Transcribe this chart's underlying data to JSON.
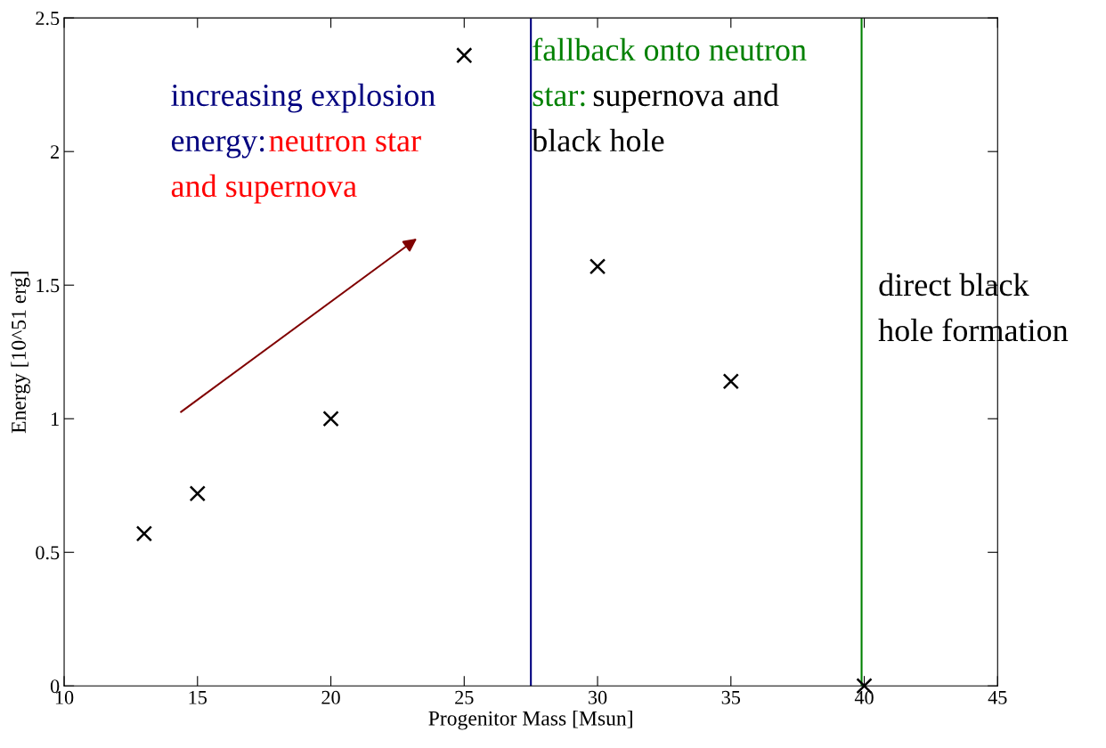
{
  "chart_data": {
    "type": "scatter",
    "xlabel": "Progenitor Mass [Msun]",
    "ylabel": "Energy [10^51 erg]",
    "x": [
      13,
      15,
      20,
      25,
      30,
      35,
      40
    ],
    "series": [
      {
        "color": "#000000",
        "values": [
          0.57,
          0.72,
          1.0,
          2.36,
          1.57,
          1.14,
          0.0
        ]
      }
    ],
    "marker": "cross",
    "grid": false,
    "legend": false,
    "xlim": [
      10,
      45
    ],
    "xticks": [
      10,
      15,
      20,
      25,
      30,
      35,
      40,
      45
    ],
    "ylim": [
      0,
      2.5
    ],
    "yticks": [
      0,
      0.5,
      1,
      1.5,
      2,
      2.5
    ],
    "ref_lines": [
      {
        "axis": "x",
        "value": 27.5,
        "color": "#00007f"
      },
      {
        "axis": "x",
        "value": 39.9,
        "color": "#008000"
      }
    ],
    "annotations": [
      "increasing explosion",
      "energy:",
      "neutron star",
      "and supernova",
      "fallback onto neutron",
      "star:",
      "supernova and",
      "black hole",
      "direct black",
      "hole formation"
    ]
  }
}
